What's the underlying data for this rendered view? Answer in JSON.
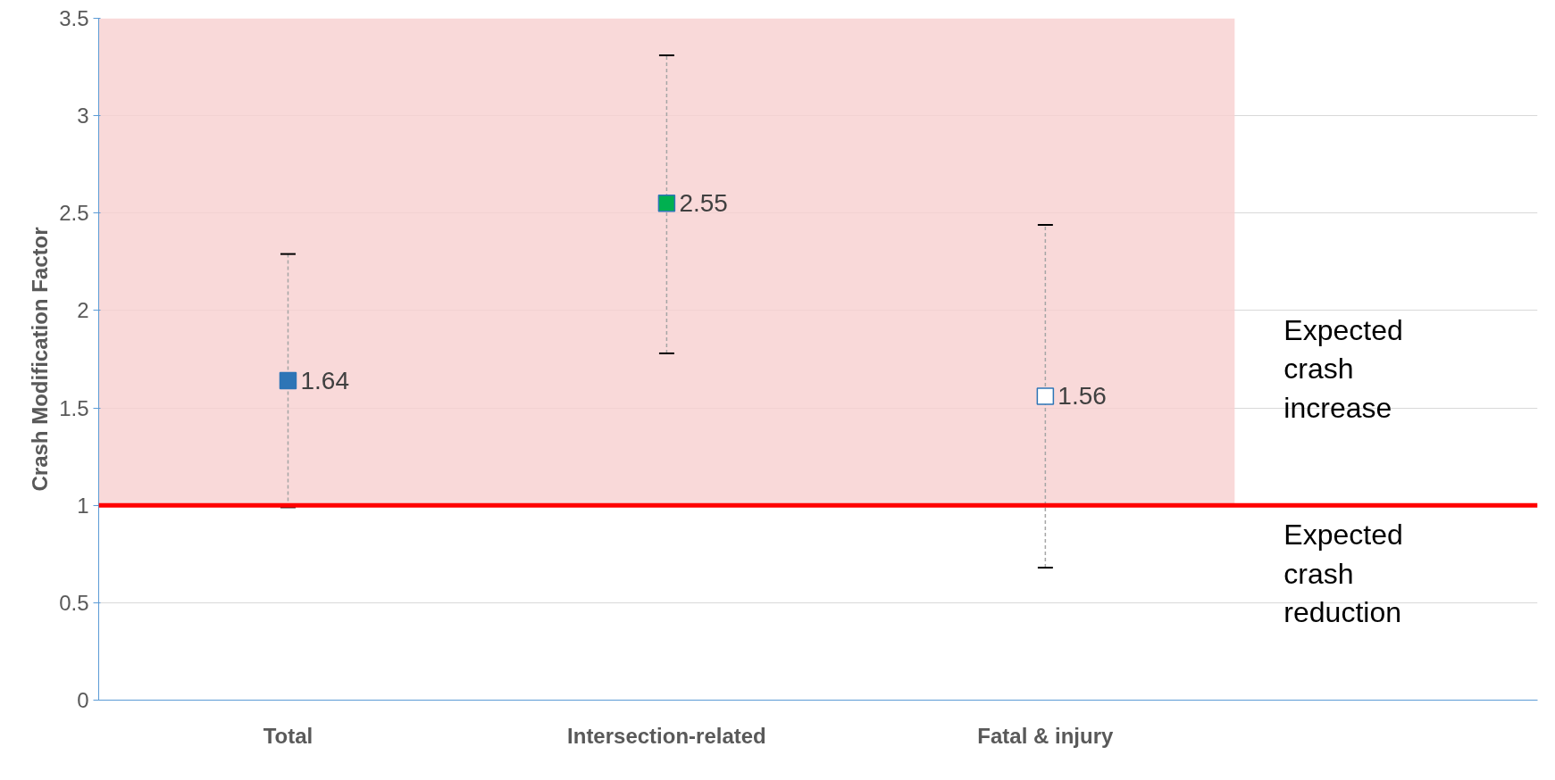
{
  "chart_data": {
    "type": "scatter",
    "ylabel": "Crash Modification Factor",
    "categories": [
      "Total",
      "Intersection-related",
      "Fatal & injury"
    ],
    "values": [
      1.64,
      2.55,
      1.56
    ],
    "colors": [
      "#2e75b6",
      "#00b050",
      "#ffffff"
    ],
    "errors": [
      [
        0.99,
        2.29
      ],
      [
        1.78,
        3.31
      ],
      [
        0.68,
        2.44
      ]
    ],
    "data_labels": true,
    "marker": "square",
    "grid": "y",
    "ylim": [
      0,
      3.5
    ],
    "yticks": [
      0,
      0.5,
      1,
      1.5,
      2,
      2.5,
      3,
      3.5
    ],
    "ref_lines": [
      {
        "axis": "y",
        "value": 1,
        "color": "#ff0000"
      }
    ],
    "bands": [
      {
        "axis": "y",
        "from": 1,
        "to": 3.5,
        "color": "#f8d0d0"
      }
    ],
    "annotations": [
      "Expected crash increase",
      "Expected crash reduction"
    ]
  }
}
